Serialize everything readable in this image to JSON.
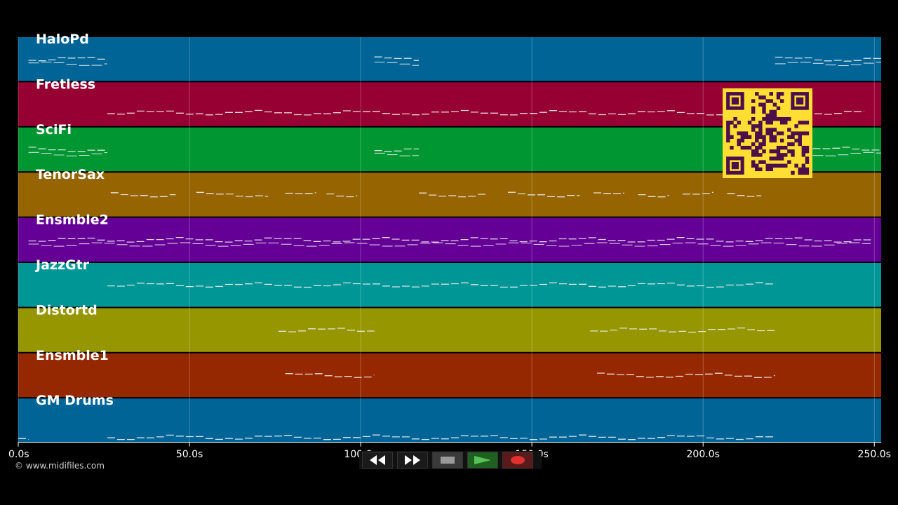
{
  "tracks": [
    {
      "name": "HaloPd",
      "color": "#006496"
    },
    {
      "name": "Fretless",
      "color": "#960032"
    },
    {
      "name": "SciFi",
      "color": "#009632"
    },
    {
      "name": "TenorSax",
      "color": "#966400"
    },
    {
      "name": "Ensmble2",
      "color": "#640096"
    },
    {
      "name": "JazzGtr",
      "color": "#009696"
    },
    {
      "name": "Distortd",
      "color": "#969600"
    },
    {
      "name": "Ensmble1",
      "color": "#962800"
    },
    {
      "name": "GM Drums",
      "color": "#006496"
    }
  ],
  "timeline": {
    "ticks": [
      "0.0s",
      "50.0s",
      "100.0s",
      "150.0s",
      "200.0s",
      "250.0s"
    ],
    "tick_values": [
      0,
      50,
      100,
      150,
      200,
      250
    ],
    "range_seconds": [
      0,
      252
    ]
  },
  "notes": {
    "HaloPd": [
      [
        3,
        26
      ],
      [
        104,
        117
      ],
      [
        221,
        252
      ]
    ],
    "Fretless": [
      [
        26,
        247
      ]
    ],
    "SciFi": [
      [
        3,
        26
      ],
      [
        104,
        117
      ],
      [
        232,
        252
      ]
    ],
    "TenorSax": [
      [
        27,
        46
      ],
      [
        52,
        73
      ],
      [
        78,
        87
      ],
      [
        90,
        99
      ],
      [
        117,
        137
      ],
      [
        143,
        164
      ],
      [
        168,
        177
      ],
      [
        181,
        190
      ],
      [
        194,
        203
      ],
      [
        207,
        217
      ]
    ],
    "Ensmble2": [
      [
        3,
        249
      ]
    ],
    "JazzGtr": [
      [
        26,
        221
      ]
    ],
    "Distortd": [
      [
        76,
        104
      ],
      [
        167,
        221
      ]
    ],
    "Ensmble1": [
      [
        78,
        104
      ],
      [
        169,
        221
      ]
    ],
    "GM Drums": [
      [
        0,
        3
      ],
      [
        26,
        221
      ]
    ]
  },
  "overlay": {
    "qr_icon": "qr-code-icon",
    "qr_color": "#ffde33",
    "qr_dark": "#4b0f4b"
  },
  "copyright": "© www.midifiles.com",
  "transport": {
    "rewind_icon": "rewind-icon",
    "fastforward_icon": "fast-forward-icon",
    "stop_icon": "stop-icon",
    "play_icon": "play-icon",
    "record_icon": "record-icon"
  }
}
